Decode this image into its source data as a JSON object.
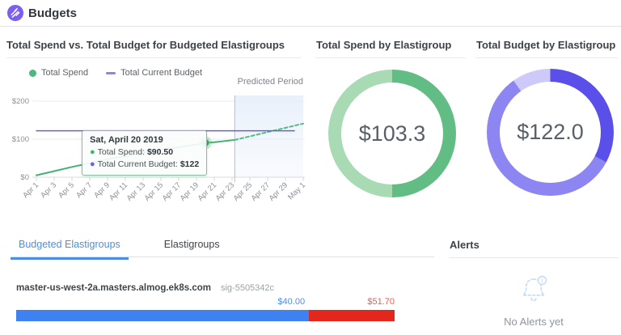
{
  "header": {
    "title": "Budgets"
  },
  "sections": {
    "trend": {
      "title": "Total Spend vs. Total Budget for Budgeted Elastigroups",
      "predicted_label": "Predicted Period",
      "legend": [
        {
          "label": "Total Spend"
        },
        {
          "label": "Total Current Budget"
        }
      ]
    },
    "spend_by_group": {
      "title": "Total Spend by Elastigroup",
      "center_value": "$103.3"
    },
    "budget_by_group": {
      "title": "Total Budget by Elastigroup",
      "center_value": "$122.0"
    }
  },
  "tooltip": {
    "title": "Sat, April 20 2019",
    "rows": [
      {
        "label": "Total Spend:",
        "value": "$90.50"
      },
      {
        "label": "Total Current Budget:",
        "value": "$122"
      }
    ]
  },
  "tabs": [
    {
      "label": "Budgeted Elastigroups"
    },
    {
      "label": "Elastigroups"
    }
  ],
  "elastigroup_row": {
    "name": "master-us-west-2a.masters.almog.ek8s.com",
    "sig": "sig-5505342c",
    "spend": 40.0,
    "total": 51.7,
    "spend_label": "$40.00",
    "total_label": "$51.70"
  },
  "alerts": {
    "title": "Alerts",
    "empty_text": "No Alerts yet"
  },
  "colors": {
    "brand_purple": "#7a5ff0",
    "spend_green": "#45b173",
    "budget_purple": "#6a5cf0",
    "tab_active_blue": "#4a90e2",
    "bar_blue": "#3e82f1",
    "bar_red": "#e3271c"
  },
  "chart_data": [
    {
      "type": "line",
      "title": "Total Spend vs. Total Budget for Budgeted Elastigroups",
      "x_tick_labels": [
        "Apr 1",
        "Apr 3",
        "Apr 5",
        "Apr 7",
        "Apr 9",
        "Apr 11",
        "Apr 13",
        "Apr 15",
        "Apr 17",
        "Apr 19",
        "Apr 21",
        "Apr 23",
        "Apr 25",
        "Apr 27",
        "Apr 29",
        "May 1"
      ],
      "x_tick_days": [
        0,
        2,
        4,
        6,
        8,
        10,
        12,
        14,
        16,
        18,
        20,
        22,
        24,
        26,
        28,
        30
      ],
      "x_domain_days": [
        0,
        30
      ],
      "ylim": [
        0,
        200
      ],
      "y_ticks": [
        {
          "v": 0,
          "label": "$0"
        },
        {
          "v": 100,
          "label": "$100"
        },
        {
          "v": 200,
          "label": "$200"
        }
      ],
      "predicted_start_day": 22.3,
      "predicted_region_label": "Predicted Period",
      "series": [
        {
          "name": "Total Spend",
          "color": "#45b173",
          "style": "solid",
          "width": 2,
          "days": [
            0,
            2,
            4,
            6,
            8,
            10,
            12,
            14,
            16,
            18,
            19,
            20,
            22.3
          ],
          "values": [
            5,
            16,
            27,
            37,
            47,
            56,
            64,
            72,
            79,
            86,
            90.5,
            92,
            98
          ]
        },
        {
          "name": "Total Spend (predicted)",
          "color": "#52bd80",
          "style": "dashed",
          "width": 2,
          "days": [
            22.3,
            30
          ],
          "values": [
            98,
            141
          ]
        },
        {
          "name": "Total Current Budget",
          "color": "#6a5cf0",
          "style": "solid",
          "width": 1.5,
          "days": [
            0,
            29
          ],
          "values": [
            122,
            122
          ]
        }
      ],
      "hover_marker": {
        "day": 19,
        "value": 90.5,
        "date": "Sat, April 20 2019",
        "total_spend": "$90.50",
        "total_current_budget": "$122"
      },
      "legend_position": "top"
    },
    {
      "type": "donut",
      "title": "Total Spend by Elastigroup",
      "center_label": "$103.3",
      "total": 103.3,
      "segments": [
        {
          "value": 51.7,
          "color": "#62bd85"
        },
        {
          "value": 51.6,
          "color": "#a8dbb4"
        }
      ]
    },
    {
      "type": "donut",
      "title": "Total Budget by Elastigroup",
      "center_label": "$122.0",
      "total": 122,
      "segments": [
        {
          "value": 40,
          "color": "#5b4fe9"
        },
        {
          "value": 70,
          "color": "#8d85f2"
        },
        {
          "value": 12,
          "color": "#cdc9f9"
        }
      ]
    },
    {
      "type": "bar",
      "title": "Budgeted Elastigroups",
      "rows": [
        {
          "name": "master-us-west-2a.masters.almog.ek8s.com",
          "sig": "sig-5505342c",
          "spend": 40.0,
          "bar_total": 51.7,
          "spend_label": "$40.00",
          "total_label": "$51.70"
        }
      ]
    }
  ]
}
